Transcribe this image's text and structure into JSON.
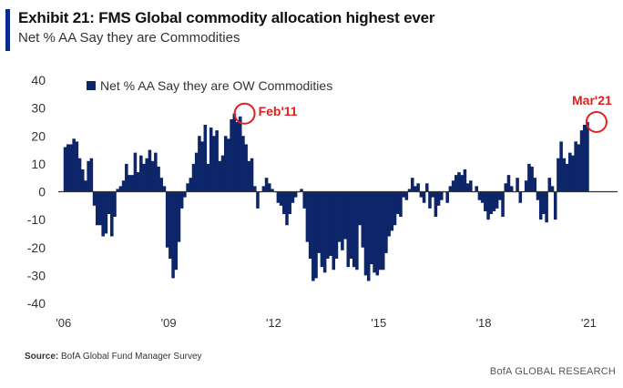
{
  "header": {
    "title": "Exhibit 21: FMS Global commodity allocation highest ever",
    "subtitle": "Net % AA Say they are Commodities"
  },
  "footer": {
    "source_label": "Source:",
    "source_text": "BofA Global Fund Manager Survey",
    "brand": "BofA GLOBAL RESEARCH"
  },
  "colors": {
    "bar": "#0d2569",
    "highlight": "#e01f1f",
    "accent": "#0a2a8c"
  },
  "chart_data": {
    "type": "bar",
    "x_axis": {
      "start": 2005.85,
      "end": 2021.25,
      "tick_labels": [
        "'06",
        "'09",
        "'12",
        "'15",
        "'18",
        "'21"
      ],
      "tick_years": [
        2006,
        2009,
        2012,
        2015,
        2018,
        2021
      ]
    },
    "ylim": [
      -40,
      40
    ],
    "yticks": [
      40,
      30,
      20,
      10,
      0,
      -10,
      -20,
      -30,
      -40
    ],
    "legend": {
      "label": "Net % AA Say they are OW Commodities",
      "position": "top-left"
    },
    "annotations": [
      {
        "label": "Feb'11",
        "year": 2011.12,
        "value": 28
      },
      {
        "label": "Mar'21",
        "year": 2021.17,
        "value": 25
      }
    ],
    "series": [
      {
        "name": "Net % AA Say they are OW Commodities",
        "start": 2006.0,
        "step": 0.0833333,
        "values": [
          16,
          17,
          17,
          19,
          18,
          12,
          8,
          4,
          11,
          12,
          -5,
          -12,
          -12,
          -16,
          -15,
          -8,
          -16,
          -9,
          1,
          2,
          4,
          10,
          6,
          6,
          14,
          7,
          13,
          10,
          12,
          15,
          11,
          14,
          9,
          5,
          2,
          -20,
          -24,
          -31,
          -28,
          -18,
          -6,
          -2,
          3,
          5,
          10,
          14,
          20,
          18,
          24,
          10,
          23,
          20,
          22,
          11,
          13,
          20,
          19,
          26,
          28,
          25,
          27,
          20,
          17,
          11,
          12,
          2,
          -6,
          0,
          2,
          5,
          3,
          1,
          0,
          -4,
          -5,
          -8,
          -12,
          -8,
          -4,
          -2,
          0,
          1,
          -6,
          -18,
          -24,
          -32,
          -31,
          -22,
          -27,
          -29,
          -24,
          -23,
          -28,
          -24,
          -18,
          -21,
          -17,
          -27,
          -24,
          -27,
          -28,
          -12,
          -20,
          -30,
          -32,
          -26,
          -29,
          -30,
          -28,
          -28,
          -22,
          -16,
          -14,
          -12,
          -8,
          -9,
          -2,
          -3,
          1,
          5,
          2,
          3,
          -2,
          -4,
          3,
          -6,
          -2,
          -9,
          -5,
          -3,
          0,
          -4,
          2,
          4,
          6,
          7,
          6,
          8,
          3,
          4,
          0,
          2,
          -3,
          -4,
          -7,
          -10,
          -8,
          -7,
          -6,
          -3,
          -9,
          3,
          6,
          2,
          0,
          5,
          -4,
          0,
          4,
          10,
          9,
          5,
          -3,
          -10,
          -8,
          -11,
          5,
          2,
          -10,
          12,
          18,
          12,
          10,
          14,
          13,
          18,
          17,
          22,
          24,
          25
        ]
      }
    ]
  }
}
